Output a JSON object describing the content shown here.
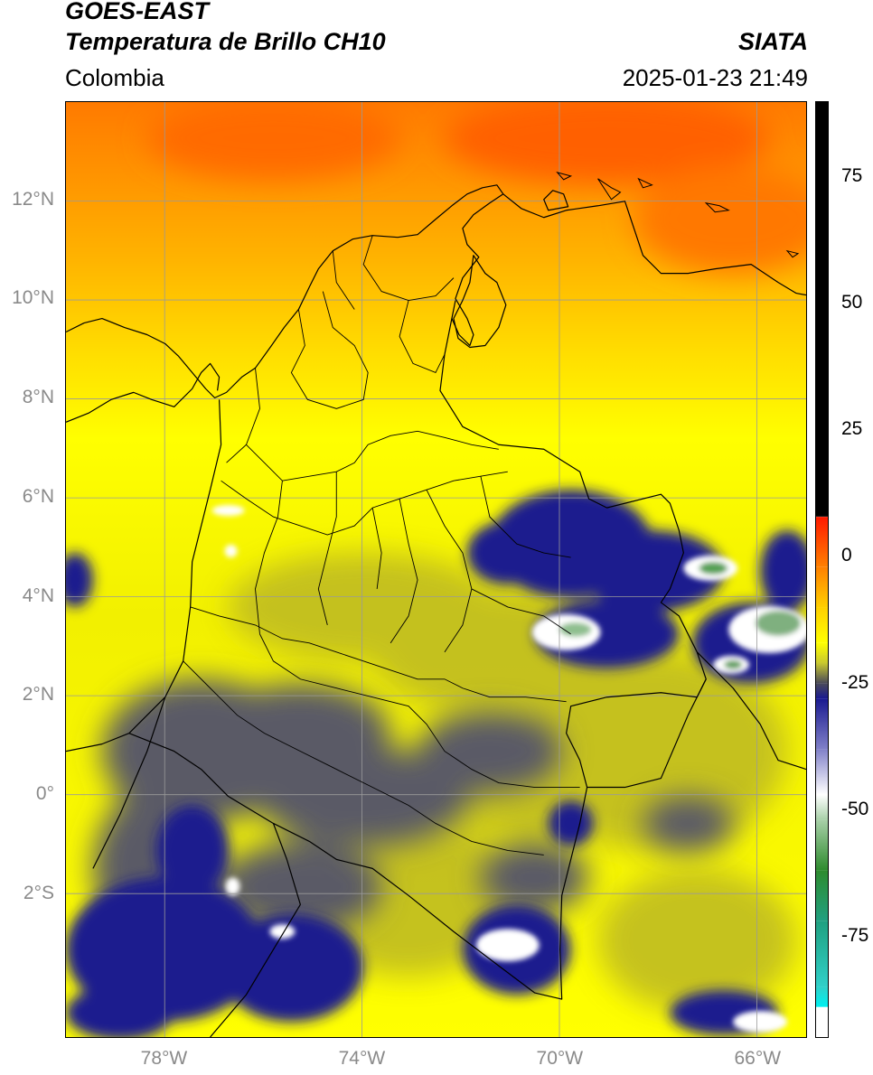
{
  "header": {
    "satellite": "GOES-EAST",
    "product": "Temperatura de Brillo CH10",
    "region": "Colombia",
    "agency": "SIATA",
    "datetime": "2025-01-23 21:49"
  },
  "map": {
    "lon_range": [
      -80,
      -65
    ],
    "lat_range": [
      -4.9,
      14
    ],
    "lat_ticks": [
      {
        "value": 12,
        "label": "12°N"
      },
      {
        "value": 10,
        "label": "10°N"
      },
      {
        "value": 8,
        "label": "8°N"
      },
      {
        "value": 6,
        "label": "6°N"
      },
      {
        "value": 4,
        "label": "4°N"
      },
      {
        "value": 2,
        "label": "2°N"
      },
      {
        "value": 0,
        "label": "0°"
      },
      {
        "value": -2,
        "label": "2°S"
      }
    ],
    "lon_ticks": [
      {
        "value": -78,
        "label": "78°W"
      },
      {
        "value": -74,
        "label": "74°W"
      },
      {
        "value": -70,
        "label": "70°W"
      },
      {
        "value": -66,
        "label": "66°W"
      }
    ],
    "gridline_color": "#9a9a9a"
  },
  "colorbar": {
    "range": [
      -95,
      90
    ],
    "ticks": [
      {
        "value": 75,
        "label": "75"
      },
      {
        "value": 50,
        "label": "50"
      },
      {
        "value": 25,
        "label": "25"
      },
      {
        "value": 0,
        "label": "0"
      },
      {
        "value": -25,
        "label": "-25"
      },
      {
        "value": -50,
        "label": "-50"
      },
      {
        "value": -75,
        "label": "-75"
      }
    ],
    "stops": [
      {
        "value": 90,
        "color": "#000000"
      },
      {
        "value": 8,
        "color": "#000000"
      },
      {
        "value": 7.9,
        "color": "#ff1a00"
      },
      {
        "value": -2,
        "color": "#ff8000"
      },
      {
        "value": -10,
        "color": "#ffd000"
      },
      {
        "value": -17,
        "color": "#ffff00"
      },
      {
        "value": -21,
        "color": "#c8c830"
      },
      {
        "value": -25,
        "color": "#4a4a58"
      },
      {
        "value": -28,
        "color": "#1a1a90"
      },
      {
        "value": -38,
        "color": "#8080c8"
      },
      {
        "value": -47,
        "color": "#ffffff"
      },
      {
        "value": -52,
        "color": "#a8d0a8"
      },
      {
        "value": -62,
        "color": "#2e8b2e"
      },
      {
        "value": -72,
        "color": "#20a080"
      },
      {
        "value": -85,
        "color": "#30d0c8"
      },
      {
        "value": -89,
        "color": "#00f0f0"
      },
      {
        "value": -89.1,
        "color": "#ffffff"
      },
      {
        "value": -95,
        "color": "#ffffff"
      }
    ]
  }
}
